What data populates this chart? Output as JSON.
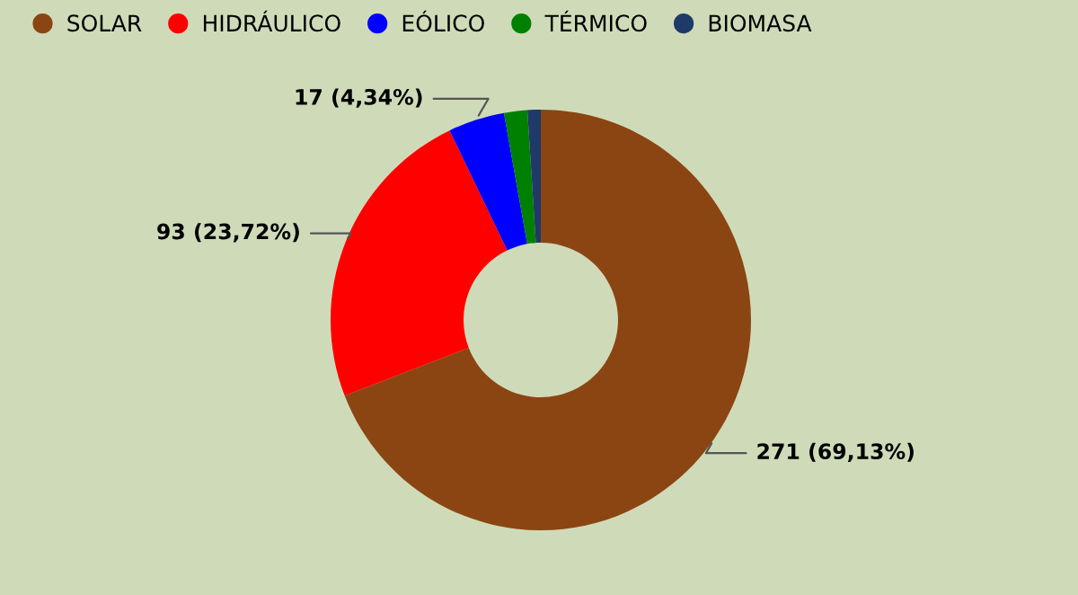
{
  "chart_data": {
    "type": "donut",
    "categories": [
      "SOLAR",
      "HIDRÁULICO",
      "EÓLICO",
      "TÉRMICO",
      "BIOMASA"
    ],
    "values": [
      271,
      93,
      17,
      7,
      4
    ],
    "colors": [
      "#8b4513",
      "#ff0000",
      "#0000ff",
      "#008000",
      "#1f3a68"
    ],
    "value_labels": [
      "271 (69,13%)",
      "93 (23,72%)",
      "17 (4,34%)",
      null,
      null
    ],
    "legend": "top left"
  }
}
